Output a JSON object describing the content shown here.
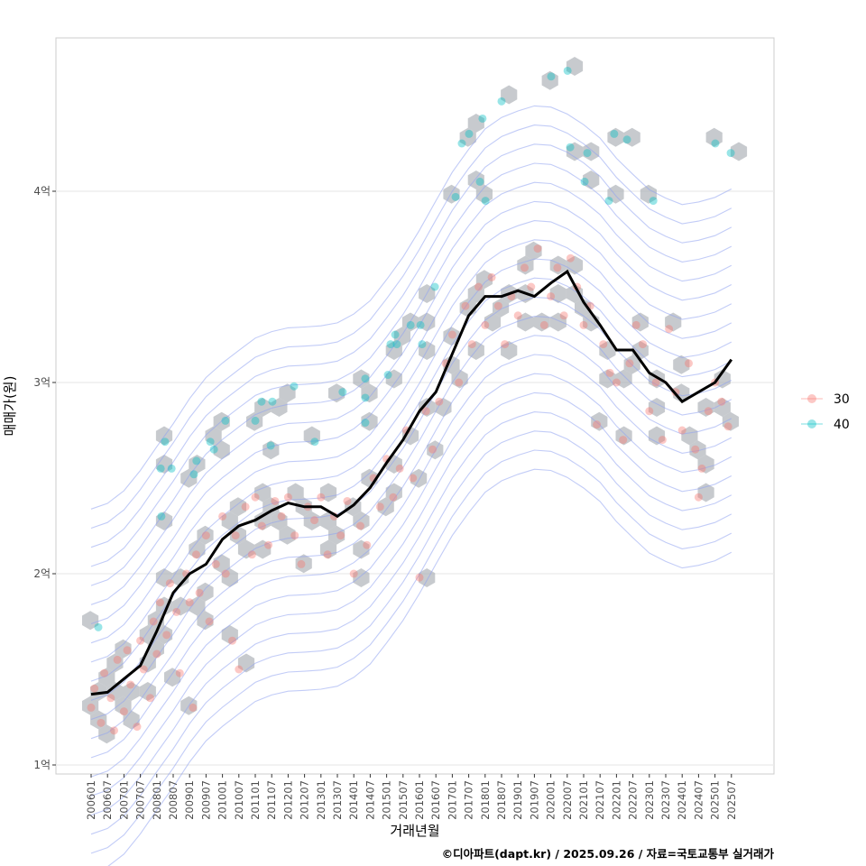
{
  "chart_data": {
    "type": "scatter",
    "title": "",
    "xlabel": "거래년월",
    "ylabel": "매매가(원)",
    "caption": "©디아파트(dapt.kr) / 2025.09.26 / 자료=국토교통부 실거래가",
    "x_ticks": [
      "200601",
      "200607",
      "200701",
      "200707",
      "200801",
      "200807",
      "200901",
      "200907",
      "201001",
      "201007",
      "201101",
      "201107",
      "201201",
      "201207",
      "201301",
      "201307",
      "201401",
      "201407",
      "201501",
      "201507",
      "201601",
      "201607",
      "201701",
      "201707",
      "201801",
      "201807",
      "201901",
      "201907",
      "202001",
      "202007",
      "202101",
      "202107",
      "202201",
      "202207",
      "202301",
      "202307",
      "202401",
      "202407",
      "202501",
      "202507"
    ],
    "y_ticks": [
      {
        "value": 1,
        "label": "1억"
      },
      {
        "value": 2,
        "label": "2억"
      },
      {
        "value": 3,
        "label": "3억"
      },
      {
        "value": 4,
        "label": "4억"
      }
    ],
    "xlim": [
      2005.45,
      2027.2
    ],
    "ylim": [
      0.95,
      4.8
    ],
    "legend": {
      "position": "right",
      "entries": [
        {
          "label": "30",
          "color": "#F8766D"
        },
        {
          "label": "40",
          "color": "#00BFC4"
        }
      ]
    },
    "median_line": {
      "x": [
        2006.0,
        2006.5,
        2007.0,
        2007.5,
        2008.0,
        2008.5,
        2009.0,
        2009.5,
        2010.0,
        2010.5,
        2011.0,
        2011.5,
        2012.0,
        2012.5,
        2013.0,
        2013.5,
        2014.0,
        2014.5,
        2015.0,
        2015.5,
        2016.0,
        2016.5,
        2017.0,
        2017.5,
        2018.0,
        2018.5,
        2019.0,
        2019.5,
        2020.0,
        2020.5,
        2021.0,
        2021.5,
        2022.0,
        2022.5,
        2023.0,
        2023.5,
        2024.0,
        2024.5,
        2025.0,
        2025.5
      ],
      "y": [
        1.37,
        1.38,
        1.45,
        1.52,
        1.7,
        1.9,
        2.0,
        2.05,
        2.18,
        2.25,
        2.28,
        2.33,
        2.37,
        2.35,
        2.35,
        2.3,
        2.36,
        2.45,
        2.58,
        2.7,
        2.85,
        2.95,
        3.15,
        3.35,
        3.45,
        3.45,
        3.48,
        3.45,
        3.52,
        3.58,
        3.42,
        3.3,
        3.17,
        3.17,
        3.05,
        3.0,
        2.9,
        2.95,
        3.0,
        3.12
      ]
    },
    "series": [
      {
        "name": "30",
        "color": "#F8766D",
        "points": [
          [
            2006.0,
            1.3
          ],
          [
            2006.1,
            1.4
          ],
          [
            2006.3,
            1.22
          ],
          [
            2006.4,
            1.48
          ],
          [
            2006.6,
            1.35
          ],
          [
            2006.7,
            1.18
          ],
          [
            2006.8,
            1.55
          ],
          [
            2007.0,
            1.28
          ],
          [
            2007.1,
            1.6
          ],
          [
            2007.2,
            1.42
          ],
          [
            2007.4,
            1.2
          ],
          [
            2007.5,
            1.65
          ],
          [
            2007.6,
            1.5
          ],
          [
            2007.8,
            1.35
          ],
          [
            2007.9,
            1.75
          ],
          [
            2008.0,
            1.58
          ],
          [
            2008.1,
            1.85
          ],
          [
            2008.3,
            1.68
          ],
          [
            2008.4,
            1.95
          ],
          [
            2008.6,
            1.8
          ],
          [
            2008.7,
            1.48
          ],
          [
            2008.9,
            2.0
          ],
          [
            2009.0,
            1.85
          ],
          [
            2009.1,
            1.3
          ],
          [
            2009.2,
            2.1
          ],
          [
            2009.3,
            1.9
          ],
          [
            2009.5,
            2.2
          ],
          [
            2009.6,
            1.75
          ],
          [
            2009.8,
            2.05
          ],
          [
            2010.0,
            2.3
          ],
          [
            2010.1,
            2.0
          ],
          [
            2010.3,
            1.65
          ],
          [
            2010.4,
            2.2
          ],
          [
            2010.5,
            1.5
          ],
          [
            2010.7,
            2.35
          ],
          [
            2010.9,
            2.1
          ],
          [
            2011.0,
            2.4
          ],
          [
            2011.2,
            2.25
          ],
          [
            2011.4,
            2.15
          ],
          [
            2011.6,
            2.38
          ],
          [
            2011.8,
            2.3
          ],
          [
            2012.0,
            2.4
          ],
          [
            2012.2,
            2.2
          ],
          [
            2012.4,
            2.05
          ],
          [
            2012.6,
            2.35
          ],
          [
            2012.8,
            2.28
          ],
          [
            2013.0,
            2.4
          ],
          [
            2013.2,
            2.1
          ],
          [
            2013.4,
            2.3
          ],
          [
            2013.6,
            2.2
          ],
          [
            2013.8,
            2.38
          ],
          [
            2014.0,
            2.0
          ],
          [
            2014.2,
            2.25
          ],
          [
            2014.4,
            2.15
          ],
          [
            2014.6,
            2.5
          ],
          [
            2014.8,
            2.35
          ],
          [
            2015.0,
            2.6
          ],
          [
            2015.2,
            2.4
          ],
          [
            2015.4,
            2.55
          ],
          [
            2015.6,
            2.75
          ],
          [
            2015.8,
            2.5
          ],
          [
            2016.0,
            1.98
          ],
          [
            2016.2,
            2.85
          ],
          [
            2016.4,
            2.65
          ],
          [
            2016.6,
            2.9
          ],
          [
            2016.8,
            3.1
          ],
          [
            2017.0,
            3.25
          ],
          [
            2017.2,
            3.0
          ],
          [
            2017.4,
            3.4
          ],
          [
            2017.6,
            3.2
          ],
          [
            2017.8,
            3.5
          ],
          [
            2018.0,
            3.3
          ],
          [
            2018.2,
            3.55
          ],
          [
            2018.4,
            3.4
          ],
          [
            2018.6,
            3.2
          ],
          [
            2018.8,
            3.45
          ],
          [
            2019.0,
            3.35
          ],
          [
            2019.2,
            3.6
          ],
          [
            2019.4,
            3.5
          ],
          [
            2019.6,
            3.7
          ],
          [
            2019.8,
            3.3
          ],
          [
            2020.0,
            3.45
          ],
          [
            2020.2,
            3.6
          ],
          [
            2020.4,
            3.35
          ],
          [
            2020.6,
            3.65
          ],
          [
            2020.8,
            3.5
          ],
          [
            2021.0,
            3.3
          ],
          [
            2021.2,
            3.4
          ],
          [
            2021.4,
            2.78
          ],
          [
            2021.6,
            3.2
          ],
          [
            2021.8,
            3.05
          ],
          [
            2022.0,
            3.0
          ],
          [
            2022.2,
            2.7
          ],
          [
            2022.4,
            3.1
          ],
          [
            2022.6,
            3.3
          ],
          [
            2022.8,
            3.2
          ],
          [
            2023.0,
            2.85
          ],
          [
            2023.2,
            3.0
          ],
          [
            2023.4,
            2.7
          ],
          [
            2023.6,
            3.28
          ],
          [
            2023.8,
            2.95
          ],
          [
            2024.0,
            2.75
          ],
          [
            2024.2,
            3.1
          ],
          [
            2024.4,
            2.65
          ],
          [
            2024.5,
            2.4
          ],
          [
            2024.6,
            2.55
          ],
          [
            2024.8,
            2.85
          ],
          [
            2025.0,
            3.0
          ],
          [
            2025.2,
            2.9
          ],
          [
            2025.4,
            2.77
          ]
        ]
      },
      {
        "name": "40",
        "color": "#00BFC4",
        "points": [
          [
            2006.22,
            1.72
          ],
          [
            2008.14,
            2.3
          ],
          [
            2008.25,
            2.69
          ],
          [
            2008.45,
            2.55
          ],
          [
            2008.12,
            2.55
          ],
          [
            2009.21,
            2.59
          ],
          [
            2009.63,
            2.69
          ],
          [
            2009.74,
            2.65
          ],
          [
            2009.13,
            2.52
          ],
          [
            2010.09,
            2.8
          ],
          [
            2011.0,
            2.8
          ],
          [
            2011.19,
            2.9
          ],
          [
            2011.52,
            2.9
          ],
          [
            2012.18,
            2.98
          ],
          [
            2011.47,
            2.67
          ],
          [
            2012.81,
            2.69
          ],
          [
            2013.66,
            2.95
          ],
          [
            2014.35,
            3.02
          ],
          [
            2014.35,
            2.92
          ],
          [
            2014.35,
            2.79
          ],
          [
            2015.04,
            3.04
          ],
          [
            2015.12,
            3.2
          ],
          [
            2015.31,
            3.2
          ],
          [
            2015.26,
            3.25
          ],
          [
            2015.73,
            3.3
          ],
          [
            2016.08,
            3.2
          ],
          [
            2016.03,
            3.3
          ],
          [
            2016.47,
            3.5
          ],
          [
            2017.1,
            3.97
          ],
          [
            2017.29,
            4.25
          ],
          [
            2017.51,
            4.3
          ],
          [
            2017.92,
            4.38
          ],
          [
            2017.84,
            4.05
          ],
          [
            2018.01,
            3.95
          ],
          [
            2018.5,
            4.47
          ],
          [
            2020.01,
            4.6
          ],
          [
            2020.51,
            4.63
          ],
          [
            2020.59,
            4.23
          ],
          [
            2021.03,
            4.05
          ],
          [
            2021.11,
            4.2
          ],
          [
            2021.77,
            3.95
          ],
          [
            2021.93,
            4.3
          ],
          [
            2022.32,
            4.27
          ],
          [
            2023.12,
            3.95
          ],
          [
            2025.01,
            4.25
          ],
          [
            2025.48,
            4.2
          ]
        ]
      }
    ]
  }
}
